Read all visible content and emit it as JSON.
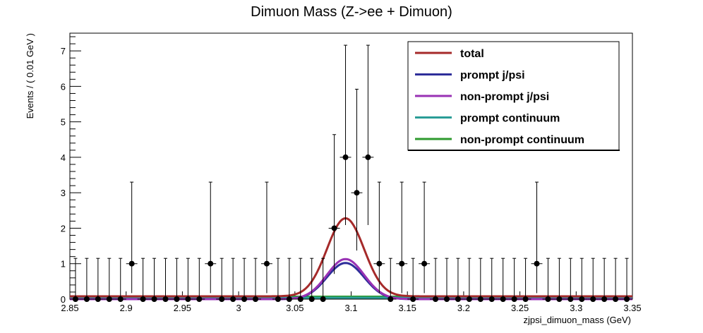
{
  "chart_data": {
    "type": "line",
    "title": "Dimuon Mass (Z->ee + Dimuon)",
    "xlabel": "zjpsi_dimuon_mass (GeV)",
    "ylabel": "Events / ( 0.01 GeV )",
    "xlim": [
      2.85,
      3.35
    ],
    "ylim": [
      0,
      7.5
    ],
    "x_ticks": [
      "2.85",
      "2.9",
      "2.95",
      "3",
      "3.05",
      "3.1",
      "3.15",
      "3.2",
      "3.25",
      "3.3",
      "3.35"
    ],
    "y_ticks": [
      "0",
      "1",
      "2",
      "3",
      "4",
      "5",
      "6",
      "7"
    ],
    "legend_position": "top-right",
    "data_points": {
      "name": "data",
      "bin_width": 0.01,
      "x": [
        2.855,
        2.865,
        2.875,
        2.885,
        2.895,
        2.905,
        2.915,
        2.925,
        2.935,
        2.945,
        2.955,
        2.965,
        2.975,
        2.985,
        2.995,
        3.005,
        3.015,
        3.025,
        3.035,
        3.045,
        3.055,
        3.065,
        3.075,
        3.085,
        3.095,
        3.105,
        3.115,
        3.125,
        3.135,
        3.145,
        3.155,
        3.165,
        3.175,
        3.185,
        3.195,
        3.205,
        3.215,
        3.225,
        3.235,
        3.245,
        3.255,
        3.265,
        3.275,
        3.285,
        3.295,
        3.305,
        3.315,
        3.325,
        3.335,
        3.345
      ],
      "y": [
        0,
        0,
        0,
        0,
        0,
        1,
        0,
        0,
        0,
        0,
        0,
        0,
        1,
        0,
        0,
        0,
        0,
        1,
        0,
        0,
        0,
        0,
        0,
        2,
        4,
        3,
        4,
        1,
        0,
        1,
        0,
        1,
        0,
        0,
        0,
        0,
        0,
        0,
        0,
        0,
        0,
        1,
        0,
        0,
        0,
        0,
        0,
        0,
        0,
        0
      ],
      "err_low": [
        0,
        0,
        0,
        0,
        0,
        0.83,
        0,
        0,
        0,
        0,
        0,
        0,
        0.83,
        0,
        0,
        0,
        0,
        0.83,
        0,
        0,
        0,
        0,
        0,
        1.29,
        1.91,
        1.63,
        1.91,
        0.83,
        0,
        0.83,
        0,
        0.83,
        0,
        0,
        0,
        0,
        0,
        0,
        0,
        0,
        0,
        0.83,
        0,
        0,
        0,
        0,
        0,
        0,
        0,
        0
      ],
      "err_high": [
        1.15,
        1.15,
        1.15,
        1.15,
        1.15,
        2.3,
        1.15,
        1.15,
        1.15,
        1.15,
        1.15,
        1.15,
        2.3,
        1.15,
        1.15,
        1.15,
        1.15,
        2.3,
        1.15,
        1.15,
        1.15,
        1.15,
        1.15,
        2.64,
        3.16,
        2.92,
        3.16,
        2.3,
        1.15,
        2.3,
        1.15,
        2.3,
        1.15,
        1.15,
        1.15,
        1.15,
        1.15,
        1.15,
        1.15,
        1.15,
        1.15,
        2.3,
        1.15,
        1.15,
        1.15,
        1.15,
        1.15,
        1.15,
        1.15,
        1.15
      ]
    },
    "series": [
      {
        "name": "total",
        "color": "#a52a2a",
        "shape": "gauss_plus_const",
        "mean": 3.095,
        "sigma": 0.0165,
        "peak": 2.2,
        "const": 0.08
      },
      {
        "name": "prompt j/psi",
        "color": "#2e2e9a",
        "shape": "gauss",
        "mean": 3.095,
        "sigma": 0.0165,
        "peak": 1.02,
        "const": 0
      },
      {
        "name": "non-prompt j/psi",
        "color": "#9932b4",
        "shape": "gauss",
        "mean": 3.095,
        "sigma": 0.0165,
        "peak": 1.13,
        "const": 0
      },
      {
        "name": "prompt continuum",
        "color": "#2a9d96",
        "shape": "flat",
        "mean": 3.095,
        "sigma": 0.0165,
        "peak": 0,
        "const": 0.04
      },
      {
        "name": "non-prompt continuum",
        "color": "#2e9a2e",
        "shape": "flat",
        "mean": 3.095,
        "sigma": 0.0165,
        "peak": 0,
        "const": 0.07
      }
    ]
  }
}
